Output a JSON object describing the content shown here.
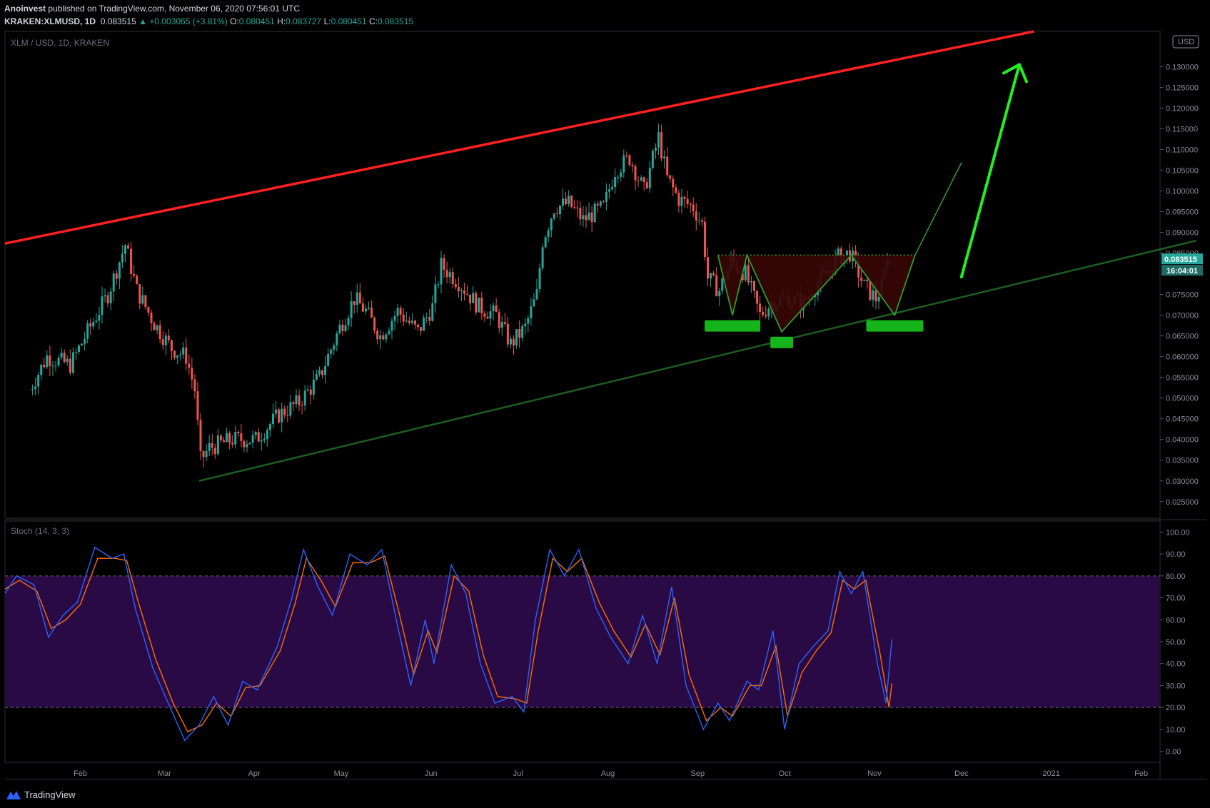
{
  "header": {
    "publisher": "Anoinvest",
    "published_text": "published on TradingView.com, November 06, 2020 07:56:01 UTC",
    "symbol": "KRAKEN:XLMUSD, 1D",
    "last": "0.083515",
    "change": "+0.003065 (+3.81%)",
    "O": "0.080451",
    "H": "0.083727",
    "L": "0.080451",
    "C": "0.083515"
  },
  "colors": {
    "up": "#26a69a",
    "down": "#ef5350",
    "resistance_line": "#ff2020",
    "support_line": "#1b5e20",
    "pattern_green": "#2e9e2e",
    "arrow": "#22ee22",
    "stoch_k": "#2962ff",
    "stoch_d": "#ff6d00",
    "stoch_band": "#2a0a45"
  },
  "chart_data": [
    {
      "type": "candlestick",
      "title": "XLM / USD, 1D, KRAKEN",
      "currency_badge": "USD",
      "ylim": [
        0.021,
        0.1385
      ],
      "y_ticks": [
        "0.130000",
        "0.125000",
        "0.120000",
        "0.115000",
        "0.110000",
        "0.105000",
        "0.100000",
        "0.095000",
        "0.090000",
        "0.085000",
        "0.075000",
        "0.070000",
        "0.065000",
        "0.060000",
        "0.055000",
        "0.050000",
        "0.045000",
        "0.040000",
        "0.035000",
        "0.030000",
        "0.025000"
      ],
      "x_ticks": [
        "Feb",
        "Mar",
        "Apr",
        "May",
        "Jun",
        "Jul",
        "Aug",
        "Sep",
        "Oct",
        "Nov",
        "Dec",
        "2021",
        "Feb"
      ],
      "last_price_label": "0.083515",
      "countdown_label": "16:04:01",
      "series": [
        {
          "name": "close_path",
          "points": [
            [
              "2020-01-14",
              0.052
            ],
            [
              "2020-01-20",
              0.06
            ],
            [
              "2020-01-28",
              0.058
            ],
            [
              "2020-02-03",
              0.066
            ],
            [
              "2020-02-10",
              0.075
            ],
            [
              "2020-02-16",
              0.087
            ],
            [
              "2020-02-20",
              0.076
            ],
            [
              "2020-02-26",
              0.068
            ],
            [
              "2020-03-03",
              0.062
            ],
            [
              "2020-03-08",
              0.06
            ],
            [
              "2020-03-11",
              0.052
            ],
            [
              "2020-03-13",
              0.035
            ],
            [
              "2020-03-16",
              0.038
            ],
            [
              "2020-03-24",
              0.04
            ],
            [
              "2020-04-01",
              0.04
            ],
            [
              "2020-04-09",
              0.046
            ],
            [
              "2020-04-16",
              0.049
            ],
            [
              "2020-04-23",
              0.055
            ],
            [
              "2020-04-30",
              0.067
            ],
            [
              "2020-05-05",
              0.074
            ],
            [
              "2020-05-09",
              0.071
            ],
            [
              "2020-05-14",
              0.065
            ],
            [
              "2020-05-20",
              0.071
            ],
            [
              "2020-05-27",
              0.066
            ],
            [
              "2020-06-01",
              0.072
            ],
            [
              "2020-06-04",
              0.082
            ],
            [
              "2020-06-10",
              0.078
            ],
            [
              "2020-06-17",
              0.072
            ],
            [
              "2020-06-23",
              0.07
            ],
            [
              "2020-06-28",
              0.063
            ],
            [
              "2020-07-03",
              0.067
            ],
            [
              "2020-07-07",
              0.075
            ],
            [
              "2020-07-09",
              0.088
            ],
            [
              "2020-07-13",
              0.096
            ],
            [
              "2020-07-18",
              0.097
            ],
            [
              "2020-07-23",
              0.093
            ],
            [
              "2020-07-30",
              0.096
            ],
            [
              "2020-08-03",
              0.105
            ],
            [
              "2020-08-08",
              0.108
            ],
            [
              "2020-08-13",
              0.1
            ],
            [
              "2020-08-18",
              0.113
            ],
            [
              "2020-08-21",
              0.103
            ],
            [
              "2020-08-25",
              0.098
            ],
            [
              "2020-08-30",
              0.096
            ],
            [
              "2020-09-02",
              0.092
            ],
            [
              "2020-09-04",
              0.079
            ],
            [
              "2020-09-08",
              0.076
            ],
            [
              "2020-09-12",
              0.083
            ],
            [
              "2020-09-17",
              0.08
            ],
            [
              "2020-09-22",
              0.07
            ],
            [
              "2020-09-26",
              0.073
            ],
            [
              "2020-10-01",
              0.074
            ],
            [
              "2020-10-07",
              0.073
            ],
            [
              "2020-10-11",
              0.077
            ],
            [
              "2020-10-15",
              0.08
            ],
            [
              "2020-10-19",
              0.084
            ],
            [
              "2020-10-23",
              0.085
            ],
            [
              "2020-10-28",
              0.077
            ],
            [
              "2020-11-01",
              0.074
            ],
            [
              "2020-11-03",
              0.077
            ],
            [
              "2020-11-05",
              0.083515
            ]
          ]
        }
      ],
      "annotations": [
        {
          "name": "resistance-trendline",
          "from": [
            "2020-01-06",
            0.0873
          ],
          "to": [
            "2020-12-26",
            0.1385
          ]
        },
        {
          "name": "support-trendline",
          "from": [
            "2020-03-13",
            0.03
          ],
          "to": [
            "2021-02-20",
            0.088
          ]
        },
        {
          "name": "neckline",
          "from": [
            "2020-09-08",
            0.0845
          ],
          "to": [
            "2020-11-15",
            0.0845
          ]
        },
        {
          "name": "projection-line",
          "from": [
            "2020-11-15",
            0.0845
          ],
          "to": [
            "2020-12-01",
            0.1068
          ]
        },
        {
          "name": "target-arrow",
          "from": [
            "2020-12-01",
            0.0792
          ],
          "to": [
            "2020-12-21",
            0.1305
          ]
        }
      ]
    },
    {
      "type": "line",
      "title": "Stoch (14, 3, 3)",
      "ylim": [
        -5,
        105
      ],
      "y_ticks": [
        "100.00",
        "90.00",
        "80.00",
        "70.00",
        "60.00",
        "50.00",
        "40.00",
        "30.00",
        "20.00",
        "10.00",
        "0.00"
      ],
      "bands": [
        20,
        80
      ],
      "series": [
        {
          "name": "%K",
          "points": [
            [
              "2020-01-06",
              72
            ],
            [
              "2020-01-10",
              80
            ],
            [
              "2020-01-16",
              76
            ],
            [
              "2020-01-21",
              52
            ],
            [
              "2020-01-26",
              62
            ],
            [
              "2020-01-31",
              68
            ],
            [
              "2020-02-06",
              93
            ],
            [
              "2020-02-12",
              88
            ],
            [
              "2020-02-16",
              90
            ],
            [
              "2020-02-20",
              65
            ],
            [
              "2020-02-26",
              38
            ],
            [
              "2020-03-03",
              20
            ],
            [
              "2020-03-08",
              5
            ],
            [
              "2020-03-13",
              12
            ],
            [
              "2020-03-18",
              25
            ],
            [
              "2020-03-23",
              12
            ],
            [
              "2020-03-28",
              32
            ],
            [
              "2020-04-02",
              28
            ],
            [
              "2020-04-09",
              48
            ],
            [
              "2020-04-14",
              70
            ],
            [
              "2020-04-18",
              92
            ],
            [
              "2020-04-23",
              75
            ],
            [
              "2020-04-28",
              62
            ],
            [
              "2020-05-04",
              90
            ],
            [
              "2020-05-10",
              85
            ],
            [
              "2020-05-15",
              92
            ],
            [
              "2020-05-20",
              60
            ],
            [
              "2020-05-25",
              30
            ],
            [
              "2020-05-30",
              60
            ],
            [
              "2020-06-02",
              40
            ],
            [
              "2020-06-08",
              85
            ],
            [
              "2020-06-13",
              72
            ],
            [
              "2020-06-18",
              40
            ],
            [
              "2020-06-23",
              22
            ],
            [
              "2020-06-29",
              25
            ],
            [
              "2020-07-03",
              18
            ],
            [
              "2020-07-07",
              60
            ],
            [
              "2020-07-12",
              92
            ],
            [
              "2020-07-17",
              80
            ],
            [
              "2020-07-22",
              92
            ],
            [
              "2020-07-28",
              65
            ],
            [
              "2020-08-02",
              52
            ],
            [
              "2020-08-08",
              40
            ],
            [
              "2020-08-13",
              62
            ],
            [
              "2020-08-18",
              40
            ],
            [
              "2020-08-23",
              75
            ],
            [
              "2020-08-28",
              30
            ],
            [
              "2020-09-03",
              10
            ],
            [
              "2020-09-08",
              22
            ],
            [
              "2020-09-12",
              14
            ],
            [
              "2020-09-18",
              32
            ],
            [
              "2020-09-22",
              28
            ],
            [
              "2020-09-27",
              55
            ],
            [
              "2020-10-01",
              10
            ],
            [
              "2020-10-06",
              40
            ],
            [
              "2020-10-11",
              48
            ],
            [
              "2020-10-16",
              55
            ],
            [
              "2020-10-20",
              82
            ],
            [
              "2020-10-24",
              72
            ],
            [
              "2020-10-28",
              82
            ],
            [
              "2020-11-02",
              40
            ],
            [
              "2020-11-05",
              22
            ],
            [
              "2020-11-07",
              51
            ]
          ]
        },
        {
          "name": "%D",
          "points": [
            [
              "2020-01-06",
              74
            ],
            [
              "2020-01-11",
              78
            ],
            [
              "2020-01-17",
              73
            ],
            [
              "2020-01-22",
              56
            ],
            [
              "2020-01-27",
              60
            ],
            [
              "2020-02-01",
              67
            ],
            [
              "2020-02-07",
              88
            ],
            [
              "2020-02-13",
              88
            ],
            [
              "2020-02-17",
              87
            ],
            [
              "2020-02-21",
              68
            ],
            [
              "2020-02-27",
              42
            ],
            [
              "2020-03-04",
              22
            ],
            [
              "2020-03-09",
              9
            ],
            [
              "2020-03-14",
              12
            ],
            [
              "2020-03-19",
              22
            ],
            [
              "2020-03-24",
              16
            ],
            [
              "2020-03-29",
              29
            ],
            [
              "2020-04-03",
              30
            ],
            [
              "2020-04-10",
              46
            ],
            [
              "2020-04-15",
              67
            ],
            [
              "2020-04-19",
              88
            ],
            [
              "2020-04-24",
              78
            ],
            [
              "2020-04-29",
              66
            ],
            [
              "2020-05-05",
              86
            ],
            [
              "2020-05-11",
              86
            ],
            [
              "2020-05-16",
              89
            ],
            [
              "2020-05-21",
              63
            ],
            [
              "2020-05-26",
              35
            ],
            [
              "2020-05-31",
              55
            ],
            [
              "2020-06-03",
              45
            ],
            [
              "2020-06-09",
              80
            ],
            [
              "2020-06-14",
              73
            ],
            [
              "2020-06-19",
              44
            ],
            [
              "2020-06-24",
              25
            ],
            [
              "2020-06-30",
              24
            ],
            [
              "2020-07-04",
              22
            ],
            [
              "2020-07-08",
              55
            ],
            [
              "2020-07-13",
              88
            ],
            [
              "2020-07-18",
              82
            ],
            [
              "2020-07-23",
              88
            ],
            [
              "2020-07-29",
              68
            ],
            [
              "2020-08-03",
              55
            ],
            [
              "2020-08-09",
              43
            ],
            [
              "2020-08-14",
              58
            ],
            [
              "2020-08-19",
              44
            ],
            [
              "2020-08-24",
              70
            ],
            [
              "2020-08-29",
              35
            ],
            [
              "2020-09-04",
              14
            ],
            [
              "2020-09-09",
              20
            ],
            [
              "2020-09-13",
              16
            ],
            [
              "2020-09-19",
              30
            ],
            [
              "2020-09-23",
              30
            ],
            [
              "2020-09-28",
              48
            ],
            [
              "2020-10-02",
              16
            ],
            [
              "2020-10-07",
              36
            ],
            [
              "2020-10-12",
              46
            ],
            [
              "2020-10-17",
              54
            ],
            [
              "2020-10-21",
              78
            ],
            [
              "2020-10-25",
              74
            ],
            [
              "2020-10-29",
              78
            ],
            [
              "2020-11-03",
              44
            ],
            [
              "2020-11-06",
              20
            ],
            [
              "2020-11-07",
              31
            ]
          ]
        }
      ]
    }
  ],
  "footer": {
    "brand": "TradingView"
  }
}
